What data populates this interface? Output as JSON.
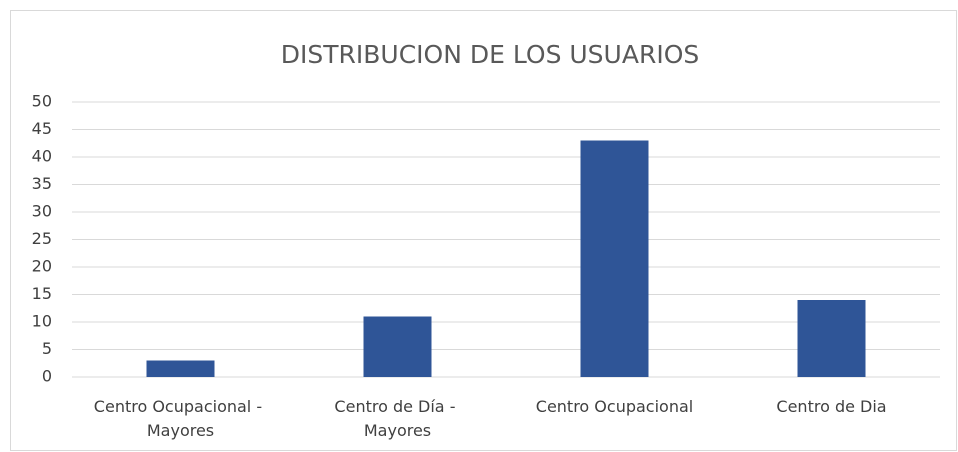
{
  "chart_data": {
    "type": "bar",
    "title": "DISTRIBUCION DE LOS USUARIOS",
    "categories": [
      "Centro Ocupacional - Mayores",
      "Centro de Día - Mayores",
      "Centro Ocupacional",
      "Centro de Dia"
    ],
    "values": [
      3,
      11,
      43,
      14
    ],
    "color": "#2f5597",
    "ylim": [
      0,
      50
    ],
    "yticks": [
      0,
      5,
      10,
      15,
      20,
      25,
      30,
      35,
      40,
      45,
      50
    ],
    "grid": true
  }
}
